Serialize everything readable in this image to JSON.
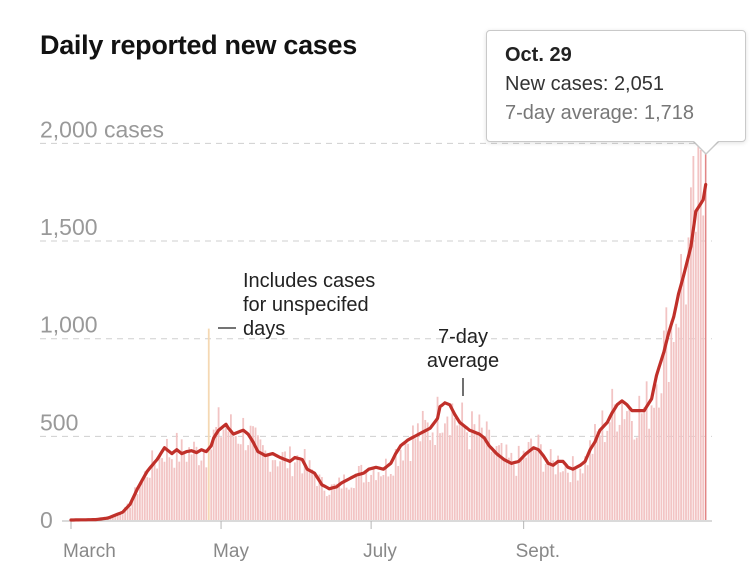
{
  "title": "Daily reported new cases",
  "tooltip": {
    "date": "Oct. 29",
    "new_cases_label": "New cases:",
    "new_cases_value": "2,051",
    "avg_label": "7-day average:",
    "avg_value": "1,718"
  },
  "annotations": {
    "unspecified_lines": [
      "Includes cases",
      "for unspecifed",
      "days"
    ],
    "average_lines": [
      "7-day",
      "average"
    ]
  },
  "colors": {
    "bar": "#f2c4c4",
    "bar_highlight": "#f5d8b3",
    "line": "#c0302a",
    "grid": "#cfcfcf",
    "tick_label": "#999999"
  },
  "chart_data": {
    "type": "bar",
    "title": "Daily reported new cases",
    "xlabel": "",
    "ylabel": "",
    "ylim": [
      0,
      2000
    ],
    "y_ticks": [
      {
        "value": 2000,
        "label": "2,000 cases"
      },
      {
        "value": 1500,
        "label": "1,500"
      },
      {
        "value": 1000,
        "label": "1,000"
      },
      {
        "value": 500,
        "label": "500"
      },
      {
        "value": 0,
        "label": "0"
      }
    ],
    "x_ticks": [
      {
        "day": 0,
        "label": "March"
      },
      {
        "day": 61,
        "label": "May"
      },
      {
        "day": 122,
        "label": "July"
      },
      {
        "day": 184,
        "label": "Sept."
      }
    ],
    "series": [
      {
        "name": "New cases",
        "kind": "bar"
      },
      {
        "name": "7-day average",
        "kind": "line"
      }
    ],
    "average_keypoints": [
      [
        0,
        0
      ],
      [
        10,
        2
      ],
      [
        15,
        10
      ],
      [
        19,
        30
      ],
      [
        21,
        40
      ],
      [
        24,
        80
      ],
      [
        27,
        160
      ],
      [
        31,
        250
      ],
      [
        35,
        310
      ],
      [
        37,
        350
      ],
      [
        38,
        370
      ],
      [
        40,
        350
      ],
      [
        41,
        340
      ],
      [
        43,
        360
      ],
      [
        45,
        340
      ],
      [
        47,
        350
      ],
      [
        49,
        355
      ],
      [
        51,
        345
      ],
      [
        53,
        360
      ],
      [
        55,
        350
      ],
      [
        57,
        380
      ],
      [
        58,
        420
      ],
      [
        60,
        460
      ],
      [
        62,
        480
      ],
      [
        63,
        490
      ],
      [
        64,
        470
      ],
      [
        66,
        440
      ],
      [
        68,
        450
      ],
      [
        70,
        460
      ],
      [
        72,
        440
      ],
      [
        74,
        400
      ],
      [
        76,
        350
      ],
      [
        79,
        330
      ],
      [
        82,
        340
      ],
      [
        85,
        320
      ],
      [
        87,
        310
      ],
      [
        89,
        300
      ],
      [
        91,
        320
      ],
      [
        94,
        310
      ],
      [
        96,
        260
      ],
      [
        99,
        240
      ],
      [
        102,
        180
      ],
      [
        105,
        160
      ],
      [
        108,
        170
      ],
      [
        110,
        190
      ],
      [
        113,
        210
      ],
      [
        116,
        230
      ],
      [
        119,
        240
      ],
      [
        121,
        260
      ],
      [
        124,
        270
      ],
      [
        127,
        260
      ],
      [
        130,
        290
      ],
      [
        132,
        340
      ],
      [
        134,
        380
      ],
      [
        137,
        410
      ],
      [
        140,
        430
      ],
      [
        143,
        450
      ],
      [
        146,
        470
      ],
      [
        149,
        520
      ],
      [
        150,
        580
      ],
      [
        152,
        600
      ],
      [
        154,
        590
      ],
      [
        156,
        540
      ],
      [
        158,
        500
      ],
      [
        160,
        480
      ],
      [
        162,
        460
      ],
      [
        164,
        450
      ],
      [
        166,
        440
      ],
      [
        168,
        420
      ],
      [
        170,
        380
      ],
      [
        173,
        340
      ],
      [
        176,
        310
      ],
      [
        179,
        290
      ],
      [
        182,
        300
      ],
      [
        185,
        340
      ],
      [
        188,
        370
      ],
      [
        190,
        360
      ],
      [
        192,
        330
      ],
      [
        194,
        290
      ],
      [
        196,
        280
      ],
      [
        198,
        300
      ],
      [
        200,
        300
      ],
      [
        202,
        270
      ],
      [
        204,
        260
      ],
      [
        207,
        280
      ],
      [
        209,
        300
      ],
      [
        211,
        360
      ],
      [
        213,
        400
      ],
      [
        215,
        460
      ],
      [
        218,
        500
      ],
      [
        220,
        550
      ],
      [
        222,
        590
      ],
      [
        224,
        610
      ],
      [
        226,
        590
      ],
      [
        228,
        560
      ],
      [
        231,
        560
      ],
      [
        233,
        560
      ],
      [
        236,
        620
      ],
      [
        238,
        740
      ],
      [
        241,
        860
      ],
      [
        243,
        960
      ],
      [
        245,
        1040
      ],
      [
        247,
        1160
      ],
      [
        249,
        1250
      ],
      [
        252,
        1400
      ],
      [
        254,
        1580
      ],
      [
        257,
        1640
      ],
      [
        258,
        1718
      ]
    ],
    "spike": {
      "day": 56,
      "value": 980
    },
    "last_day": 258,
    "highlight": {
      "day": 258,
      "date": "Oct. 29",
      "new_cases": 2051,
      "average": 1718
    }
  }
}
